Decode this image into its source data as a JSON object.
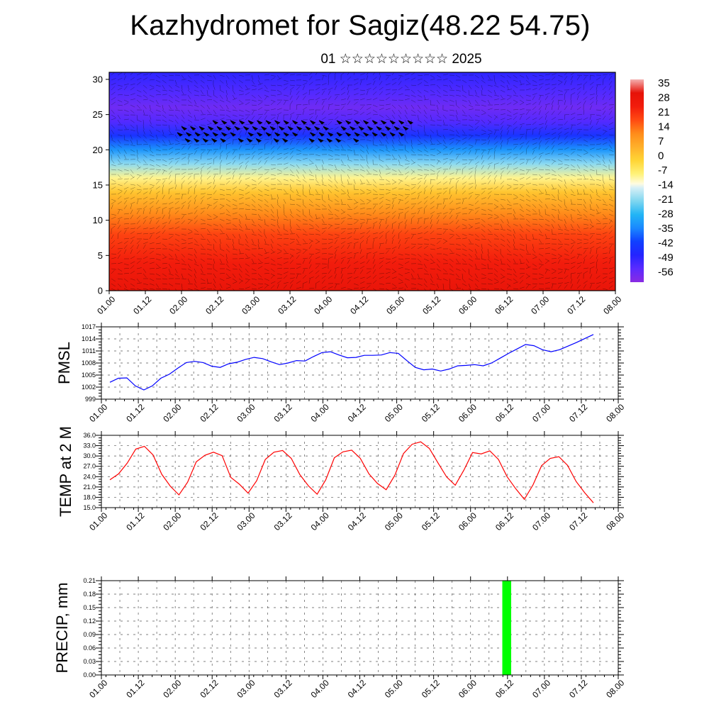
{
  "header": {
    "title": "Kazhydromet for Sagiz(48.22 54.75)",
    "subtitle": "01 ☆☆☆☆☆☆☆☆☆ 2025"
  },
  "colors": {
    "pmsl_line": "#0000ff",
    "temp_line": "#ff0000",
    "precip_bar": "#00ff00",
    "grid": "#555555"
  },
  "chart_data": [
    {
      "type": "heatmap",
      "name": "upper-air-temperature",
      "x_tick_labels": [
        "01.00",
        "01.12",
        "02.00",
        "02.12",
        "03.00",
        "03.12",
        "04.00",
        "04.12",
        "05.00",
        "05.12",
        "06.00",
        "06.12",
        "07.00",
        "07.12",
        "08.00"
      ],
      "ylim": [
        0,
        31
      ],
      "y_ticks": [
        0,
        5,
        10,
        15,
        20,
        25,
        30
      ],
      "colorbar_labels": [
        "35",
        "28",
        "21",
        "14",
        "7",
        "0",
        "-7",
        "-14",
        "-21",
        "-28",
        "-35",
        "-42",
        "-49",
        "-56"
      ],
      "colorbar_range": [
        -63,
        42
      ],
      "vertical_profile": [
        {
          "level": 0,
          "value": 33
        },
        {
          "level": 4,
          "value": 28
        },
        {
          "level": 8,
          "value": 22
        },
        {
          "level": 11,
          "value": 14
        },
        {
          "level": 14,
          "value": 3
        },
        {
          "level": 16,
          "value": -8
        },
        {
          "level": 18,
          "value": -20
        },
        {
          "level": 20,
          "value": -33
        },
        {
          "level": 22,
          "value": -45
        },
        {
          "level": 24,
          "value": -55
        },
        {
          "level": 26,
          "value": -59
        },
        {
          "level": 28,
          "value": -55
        },
        {
          "level": 31,
          "value": -50
        }
      ]
    },
    {
      "type": "line",
      "ylabel": "PMSL",
      "x_tick_labels": [
        "01.00",
        "01.12",
        "02.00",
        "02.12",
        "03.00",
        "03.12",
        "04.00",
        "04.12",
        "05.00",
        "05.12",
        "06.00",
        "06.12",
        "07.00",
        "07.12",
        "08.00"
      ],
      "ylim": [
        999,
        1017
      ],
      "y_ticks": [
        "1017",
        "1014",
        "1011",
        "1008",
        "1005",
        "1002",
        "999"
      ],
      "series": [
        {
          "values": [
            1003.2,
            1004.2,
            1004.3,
            1002.3,
            1001.3,
            1002.3,
            1004.2,
            1005.2,
            1006.7,
            1008.1,
            1008.4,
            1008.1,
            1007.2,
            1006.9,
            1007.8,
            1008.2,
            1008.9,
            1009.4,
            1009.1,
            1008.3,
            1007.6,
            1008.0,
            1008.6,
            1008.5,
            1009.6,
            1010.6,
            1010.8,
            1010.0,
            1009.3,
            1009.4,
            1009.9,
            1009.9,
            1010.0,
            1010.6,
            1010.4,
            1008.6,
            1006.9,
            1006.3,
            1006.5,
            1006.0,
            1006.5,
            1007.3,
            1007.4,
            1007.6,
            1007.3,
            1008.0,
            1009.2,
            1010.4,
            1011.5,
            1012.6,
            1012.3,
            1011.3,
            1010.8,
            1011.3,
            1012.2,
            1013.1,
            1014.1,
            1015.1
          ]
        }
      ]
    },
    {
      "type": "line",
      "ylabel": "TEMP at 2 M",
      "x_tick_labels": [
        "01.00",
        "01.12",
        "02.00",
        "02.12",
        "03.00",
        "03.12",
        "04.00",
        "04.12",
        "05.00",
        "05.12",
        "06.00",
        "06.12",
        "07.00",
        "07.12",
        "08.00"
      ],
      "ylim": [
        15,
        36
      ],
      "y_ticks": [
        "36.0",
        "33.0",
        "30.0",
        "27.0",
        "24.0",
        "21.0",
        "18.0",
        "15.0"
      ],
      "series": [
        {
          "values": [
            23.1,
            24.8,
            27.9,
            32.0,
            32.8,
            30.3,
            24.7,
            21.2,
            18.7,
            22.4,
            28.3,
            30.2,
            31.1,
            30.1,
            23.8,
            21.8,
            19.2,
            22.8,
            29.0,
            31.1,
            31.6,
            29.3,
            24.6,
            21.3,
            18.9,
            23.1,
            29.5,
            31.2,
            31.7,
            29.3,
            24.8,
            22.0,
            20.2,
            24.4,
            30.7,
            33.4,
            34.1,
            32.2,
            28.0,
            23.9,
            21.5,
            25.9,
            31.0,
            30.6,
            31.5,
            29.0,
            24.0,
            20.5,
            17.4,
            21.6,
            27.2,
            29.3,
            29.8,
            27.3,
            22.6,
            19.3,
            16.4
          ]
        }
      ]
    },
    {
      "type": "bar",
      "ylabel": "PRECIP, mm",
      "x_tick_labels": [
        "01.00",
        "01.12",
        "02.00",
        "02.12",
        "03.00",
        "03.12",
        "04.00",
        "04.12",
        "05.00",
        "05.12",
        "06.00",
        "06.12",
        "07.00",
        "07.12",
        "08.00"
      ],
      "ylim": [
        0,
        0.21
      ],
      "y_ticks": [
        "0.21",
        "0.18",
        "0.15",
        "0.12",
        "0.09",
        "0.06",
        "0.03",
        "0.00"
      ],
      "bars": [
        {
          "x_start": 5.43,
          "x_end": 5.55,
          "value": 0.21
        }
      ]
    }
  ]
}
